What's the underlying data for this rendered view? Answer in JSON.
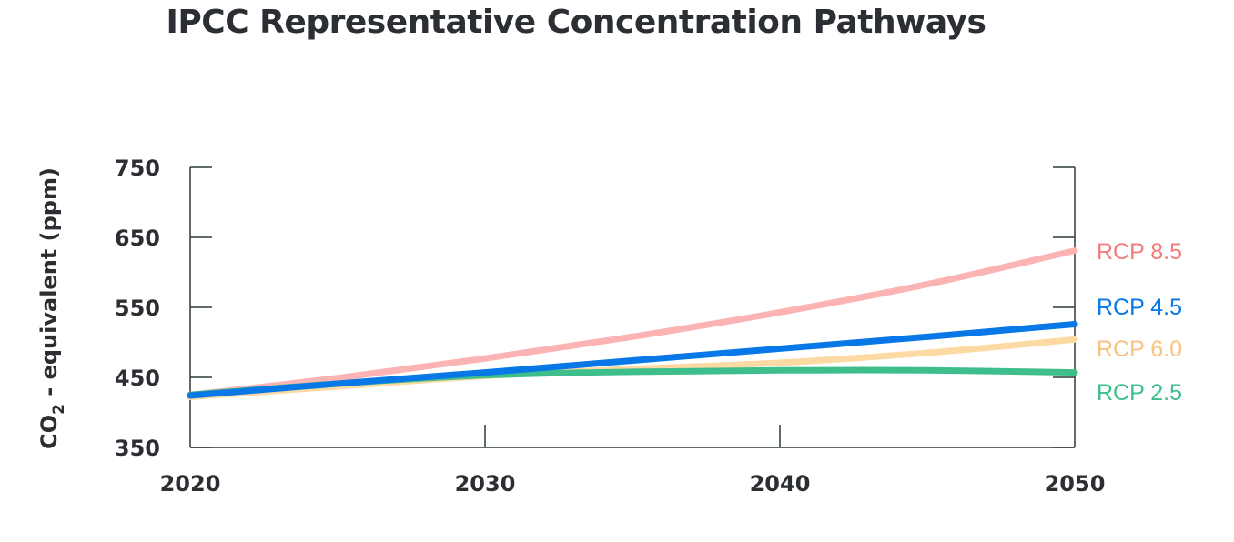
{
  "chart_data": {
    "type": "line",
    "title": "IPCC Representative Concentration Pathways",
    "xlabel": "",
    "ylabel": {
      "prefix": "CO",
      "subscript": "2",
      "suffix": " - equivalent (ppm)"
    },
    "xlim": [
      2020,
      2050
    ],
    "ylim": [
      350,
      750
    ],
    "xticks": [
      2020,
      2030,
      2040,
      2050
    ],
    "yticks": [
      350,
      450,
      550,
      650,
      750
    ],
    "grid": false,
    "legend": "direct labels at right end of lines",
    "series": [
      {
        "name": "RCP 8.5",
        "color": "#FCB3B3",
        "label_color": "#F47B7B",
        "x": [
          2020,
          2025,
          2030,
          2035,
          2040,
          2045,
          2050
        ],
        "y": [
          425,
          449,
          477,
          508,
          543,
          583,
          631
        ]
      },
      {
        "name": "RCP 4.5",
        "color": "#0878E6",
        "label_color": "#0878E6",
        "x": [
          2020,
          2025,
          2030,
          2035,
          2040,
          2045,
          2050
        ],
        "y": [
          424,
          441,
          457,
          474,
          491,
          508,
          526
        ]
      },
      {
        "name": "RCP 6.0",
        "color": "#FDD9A4",
        "label_color": "#F9C27E",
        "x": [
          2020,
          2025,
          2030,
          2035,
          2040,
          2045,
          2050
        ],
        "y": [
          422,
          437,
          452,
          462,
          471,
          485,
          504
        ]
      },
      {
        "name": "RCP 2.5",
        "color": "#3DBE8B",
        "label_color": "#3DBE8B",
        "x": [
          2020,
          2025,
          2030,
          2035,
          2040,
          2045,
          2050
        ],
        "y": [
          425,
          441,
          453,
          458,
          460,
          460,
          457
        ]
      }
    ]
  }
}
